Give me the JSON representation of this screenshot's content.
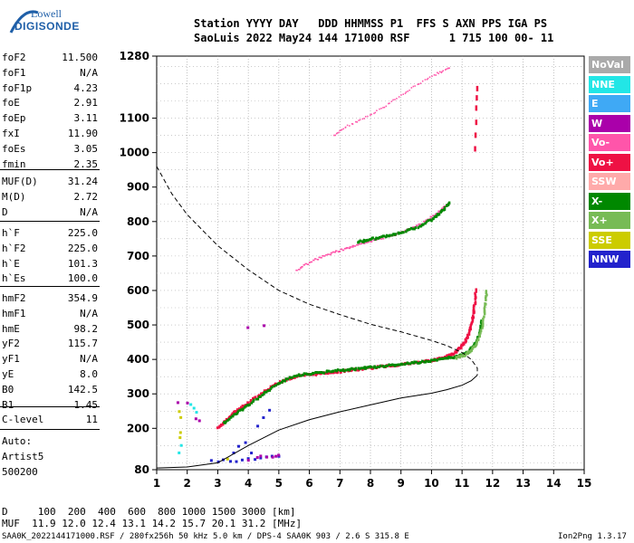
{
  "logo": {
    "line1": "Lowell",
    "line2": "DIGISONDE"
  },
  "header": {
    "line1": "Station YYYY DAY   DDD HHMMSS P1  FFS S AXN PPS IGA PS",
    "line2": "SaoLuis 2022 May24 144 171000 RSF      1 715 100 00- 11"
  },
  "params_group1": [
    {
      "name": "foF2",
      "value": "11.500"
    },
    {
      "name": "foF1",
      "value": "N/A"
    },
    {
      "name": "foF1p",
      "value": "4.23"
    },
    {
      "name": "foE",
      "value": "2.91"
    },
    {
      "name": "foEp",
      "value": "3.11"
    },
    {
      "name": "fxI",
      "value": "11.90"
    },
    {
      "name": "foEs",
      "value": "3.05"
    },
    {
      "name": "fmin",
      "value": "2.35"
    }
  ],
  "params_group2": [
    {
      "name": "MUF(D)",
      "value": "31.24"
    },
    {
      "name": "M(D)",
      "value": "2.72"
    },
    {
      "name": "D",
      "value": "N/A"
    }
  ],
  "params_group3": [
    {
      "name": "h`F",
      "value": "225.0"
    },
    {
      "name": "h`F2",
      "value": "225.0"
    },
    {
      "name": "h`E",
      "value": "101.3"
    },
    {
      "name": "h`Es",
      "value": "100.0"
    }
  ],
  "params_group4": [
    {
      "name": "hmF2",
      "value": "354.9"
    },
    {
      "name": "hmF1",
      "value": "N/A"
    },
    {
      "name": "hmE",
      "value": "98.2"
    },
    {
      "name": "yF2",
      "value": "115.7"
    },
    {
      "name": "yF1",
      "value": "N/A"
    },
    {
      "name": "yE",
      "value": "8.0"
    },
    {
      "name": "B0",
      "value": "142.5"
    },
    {
      "name": "B1",
      "value": "1.45"
    }
  ],
  "params_group5": [
    {
      "name": "C-level",
      "value": "11"
    }
  ],
  "autoscaling": {
    "line1": "Auto:",
    "line2": "Artist5",
    "line3": "500200"
  },
  "legend": [
    {
      "label": "NoVal",
      "color": "#aaaaaa"
    },
    {
      "label": "NNE",
      "color": "#22e6e6"
    },
    {
      "label": "E",
      "color": "#3fa9f5"
    },
    {
      "label": "W",
      "color": "#aa00aa"
    },
    {
      "label": "Vo-",
      "color": "#ff55aa"
    },
    {
      "label": "Vo+",
      "color": "#ee1144"
    },
    {
      "label": "SSW",
      "color": "#ffaaaa"
    },
    {
      "label": "X-",
      "color": "#008800"
    },
    {
      "label": "X+",
      "color": "#77bb55"
    },
    {
      "label": "SSE",
      "color": "#cccc00"
    },
    {
      "label": "NNW",
      "color": "#2222cc"
    }
  ],
  "muf_table": {
    "d_line": "D     100  200  400  600  800 1000 1500 3000 [km]",
    "muf_line": "MUF  11.9 12.0 12.4 13.1 14.2 15.7 20.1 31.2 [MHz]"
  },
  "footer": {
    "left": "SAA0K_2022144171000.RSF / 280fx256h 50 kHz 5.0 km / DPS-4 SAA0K 903 / 2.6 S 315.8 E",
    "right": "Ion2Png 1.3.17"
  },
  "chart_data": {
    "type": "scatter",
    "x_range": [
      1,
      15
    ],
    "y_range": [
      80,
      1280
    ],
    "x_ticks": [
      1,
      2,
      3,
      4,
      5,
      6,
      7,
      8,
      9,
      10,
      11,
      12,
      13,
      14,
      15
    ],
    "y_ticks": [
      80,
      200,
      300,
      400,
      500,
      600,
      700,
      800,
      900,
      1000,
      1100,
      1280
    ],
    "grid": true,
    "series": [
      {
        "name": "Vo+",
        "color": "#ee1144",
        "kind": "o_trace",
        "points": [
          [
            3.0,
            200
          ],
          [
            3.3,
            225
          ],
          [
            3.6,
            250
          ],
          [
            4.0,
            275
          ],
          [
            4.5,
            305
          ],
          [
            5.0,
            333
          ],
          [
            5.5,
            348
          ],
          [
            6.0,
            355
          ],
          [
            6.5,
            360
          ],
          [
            7.0,
            365
          ],
          [
            7.5,
            370
          ],
          [
            8.0,
            375
          ],
          [
            8.5,
            380
          ],
          [
            9.0,
            385
          ],
          [
            9.5,
            390
          ],
          [
            10.0,
            397
          ],
          [
            10.4,
            405
          ],
          [
            10.7,
            415
          ],
          [
            10.9,
            430
          ],
          [
            11.1,
            450
          ],
          [
            11.25,
            480
          ],
          [
            11.35,
            520
          ],
          [
            11.42,
            560
          ],
          [
            11.45,
            605
          ]
        ]
      },
      {
        "name": "X-",
        "color": "#008800",
        "kind": "x_trace",
        "points": [
          [
            3.2,
            215
          ],
          [
            3.6,
            242
          ],
          [
            4.0,
            268
          ],
          [
            4.5,
            300
          ],
          [
            5.0,
            330
          ],
          [
            5.5,
            352
          ],
          [
            6.0,
            358
          ],
          [
            6.5,
            363
          ],
          [
            7.0,
            368
          ],
          [
            7.5,
            372
          ],
          [
            8.0,
            377
          ],
          [
            8.5,
            381
          ],
          [
            9.0,
            386
          ],
          [
            9.5,
            391
          ],
          [
            10.0,
            396
          ],
          [
            10.5,
            403
          ],
          [
            10.9,
            410
          ],
          [
            11.2,
            420
          ],
          [
            11.4,
            440
          ],
          [
            11.55,
            470
          ],
          [
            11.65,
            510
          ]
        ]
      },
      {
        "name": "X+",
        "color": "#77bb55",
        "kind": "x_trace2",
        "points": [
          [
            10.8,
            405
          ],
          [
            11.1,
            412
          ],
          [
            11.3,
            425
          ],
          [
            11.5,
            450
          ],
          [
            11.65,
            490
          ],
          [
            11.75,
            540
          ],
          [
            11.8,
            600
          ]
        ]
      },
      {
        "name": "Vo-",
        "color": "#ff55aa",
        "kind": "o_multihop",
        "points": [
          [
            5.6,
            660
          ],
          [
            6.2,
            690
          ],
          [
            6.8,
            710
          ],
          [
            7.3,
            725
          ],
          [
            7.8,
            738
          ],
          [
            8.3,
            750
          ],
          [
            8.8,
            762
          ],
          [
            9.3,
            778
          ],
          [
            9.8,
            800
          ],
          [
            10.2,
            825
          ],
          [
            10.5,
            848
          ]
        ]
      },
      {
        "name": "X-",
        "color": "#008800",
        "kind": "x_multihop",
        "points": [
          [
            7.6,
            740
          ],
          [
            8.0,
            748
          ],
          [
            8.5,
            758
          ],
          [
            9.0,
            768
          ],
          [
            9.5,
            782
          ],
          [
            10.0,
            805
          ],
          [
            10.3,
            825
          ],
          [
            10.6,
            855
          ]
        ]
      },
      {
        "name": "Vo-",
        "color": "#ff55aa",
        "kind": "o_multihop3",
        "points": [
          [
            6.8,
            1050
          ],
          [
            7.2,
            1075
          ],
          [
            7.8,
            1100
          ],
          [
            8.4,
            1130
          ],
          [
            9.0,
            1165
          ],
          [
            9.6,
            1200
          ],
          [
            10.2,
            1230
          ],
          [
            10.6,
            1245
          ]
        ]
      },
      {
        "name": "Vo+",
        "color": "#ee1144",
        "kind": "vertical_stack",
        "points": [
          [
            11.45,
            1010
          ],
          [
            11.45,
            1050
          ],
          [
            11.47,
            1090
          ],
          [
            11.48,
            1130
          ],
          [
            11.5,
            1160
          ],
          [
            11.5,
            1185
          ]
        ]
      },
      {
        "name": "NNW",
        "color": "#2222cc",
        "kind": "sporadic_E",
        "points": [
          [
            2.8,
            105
          ],
          [
            3.0,
            105
          ],
          [
            3.2,
            108
          ],
          [
            3.4,
            105
          ],
          [
            3.6,
            104
          ],
          [
            3.8,
            108
          ],
          [
            4.0,
            110
          ],
          [
            4.2,
            112
          ],
          [
            4.4,
            115
          ],
          [
            4.6,
            118
          ],
          [
            4.8,
            118
          ],
          [
            5.0,
            118
          ],
          [
            3.5,
            130
          ],
          [
            3.7,
            150
          ],
          [
            3.9,
            160
          ],
          [
            4.1,
            130
          ],
          [
            4.3,
            205
          ],
          [
            4.5,
            230
          ],
          [
            4.7,
            250
          ]
        ]
      },
      {
        "name": "W",
        "color": "#aa00aa",
        "kind": "sporadic_W",
        "points": [
          [
            4.0,
            105
          ],
          [
            4.3,
            115
          ],
          [
            4.6,
            118
          ],
          [
            4.9,
            120
          ],
          [
            5.0,
            122
          ],
          [
            4.4,
            120
          ],
          [
            4.8,
            118
          ]
        ]
      },
      {
        "name": "SSE",
        "color": "#cccc00",
        "kind": "sporadic_SSE",
        "points": [
          [
            1.75,
            175
          ],
          [
            1.8,
            190
          ],
          [
            1.8,
            230
          ],
          [
            1.75,
            250
          ],
          [
            3.3,
            110
          ]
        ]
      },
      {
        "name": "NNE",
        "color": "#22e6e6",
        "kind": "sporadic_NNE",
        "points": [
          [
            1.75,
            130
          ],
          [
            1.8,
            150
          ],
          [
            2.1,
            270
          ],
          [
            2.2,
            260
          ],
          [
            2.3,
            245
          ]
        ]
      },
      {
        "name": "W",
        "color": "#aa00aa",
        "kind": "scattered",
        "points": [
          [
            1.7,
            275
          ],
          [
            2.3,
            230
          ],
          [
            2.4,
            220
          ],
          [
            2.0,
            275
          ],
          [
            4.0,
            490
          ],
          [
            4.5,
            500
          ]
        ]
      }
    ],
    "profile_solid": [
      [
        1,
        85
      ],
      [
        2,
        88
      ],
      [
        3,
        100
      ],
      [
        4,
        150
      ],
      [
        5,
        195
      ],
      [
        6,
        225
      ],
      [
        7,
        248
      ],
      [
        8,
        268
      ],
      [
        9,
        288
      ],
      [
        10,
        302
      ],
      [
        10.5,
        312
      ],
      [
        11,
        325
      ],
      [
        11.3,
        338
      ],
      [
        11.5,
        354
      ]
    ],
    "profile_dashed": [
      [
        1,
        960
      ],
      [
        1.5,
        880
      ],
      [
        2,
        820
      ],
      [
        3,
        730
      ],
      [
        4,
        660
      ],
      [
        5,
        600
      ],
      [
        6,
        560
      ],
      [
        7,
        530
      ],
      [
        8,
        502
      ],
      [
        9,
        480
      ],
      [
        10,
        455
      ],
      [
        10.5,
        440
      ],
      [
        11,
        420
      ],
      [
        11.3,
        400
      ],
      [
        11.5,
        375
      ],
      [
        11.5,
        354
      ]
    ]
  }
}
